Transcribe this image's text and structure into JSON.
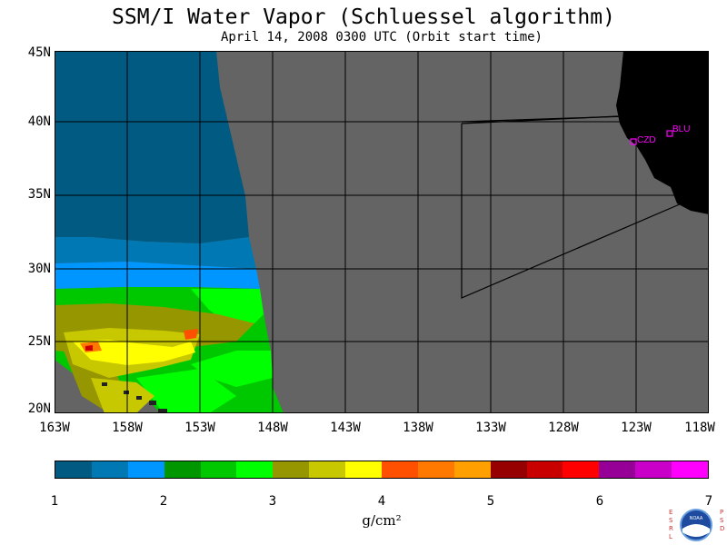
{
  "header": {
    "title": "SSM/I Water Vapor (Schluessel algorithm)",
    "subtitle": "April 14, 2008  0300 UTC  (Orbit start time)"
  },
  "map": {
    "latitude_labels": [
      "45N",
      "40N",
      "35N",
      "30N",
      "25N",
      "20N"
    ],
    "longitude_labels": [
      "163W",
      "158W",
      "153W",
      "148W",
      "143W",
      "138W",
      "133W",
      "128W",
      "123W",
      "118W"
    ],
    "stations": [
      {
        "code": "CZD"
      },
      {
        "code": "BLU"
      }
    ],
    "colors": {
      "no_data": "#646464",
      "land": "#000000",
      "grid": "#000000",
      "station": "#ff00ff"
    }
  },
  "colorbar": {
    "units": "g/cm²",
    "tick_labels": [
      "1",
      "2",
      "3",
      "4",
      "5",
      "6",
      "7"
    ],
    "colors": [
      "#005a82",
      "#0078b4",
      "#0096ff",
      "#009600",
      "#00c800",
      "#00ff00",
      "#969600",
      "#c8c800",
      "#ffff00",
      "#ff5000",
      "#ff7800",
      "#ffa000",
      "#960000",
      "#c80000",
      "#ff0000",
      "#960096",
      "#c800c8",
      "#ff00ff"
    ]
  },
  "logo": {
    "left_letters": "ESRL",
    "right_letters": "PSD",
    "badge": "NOAA"
  }
}
